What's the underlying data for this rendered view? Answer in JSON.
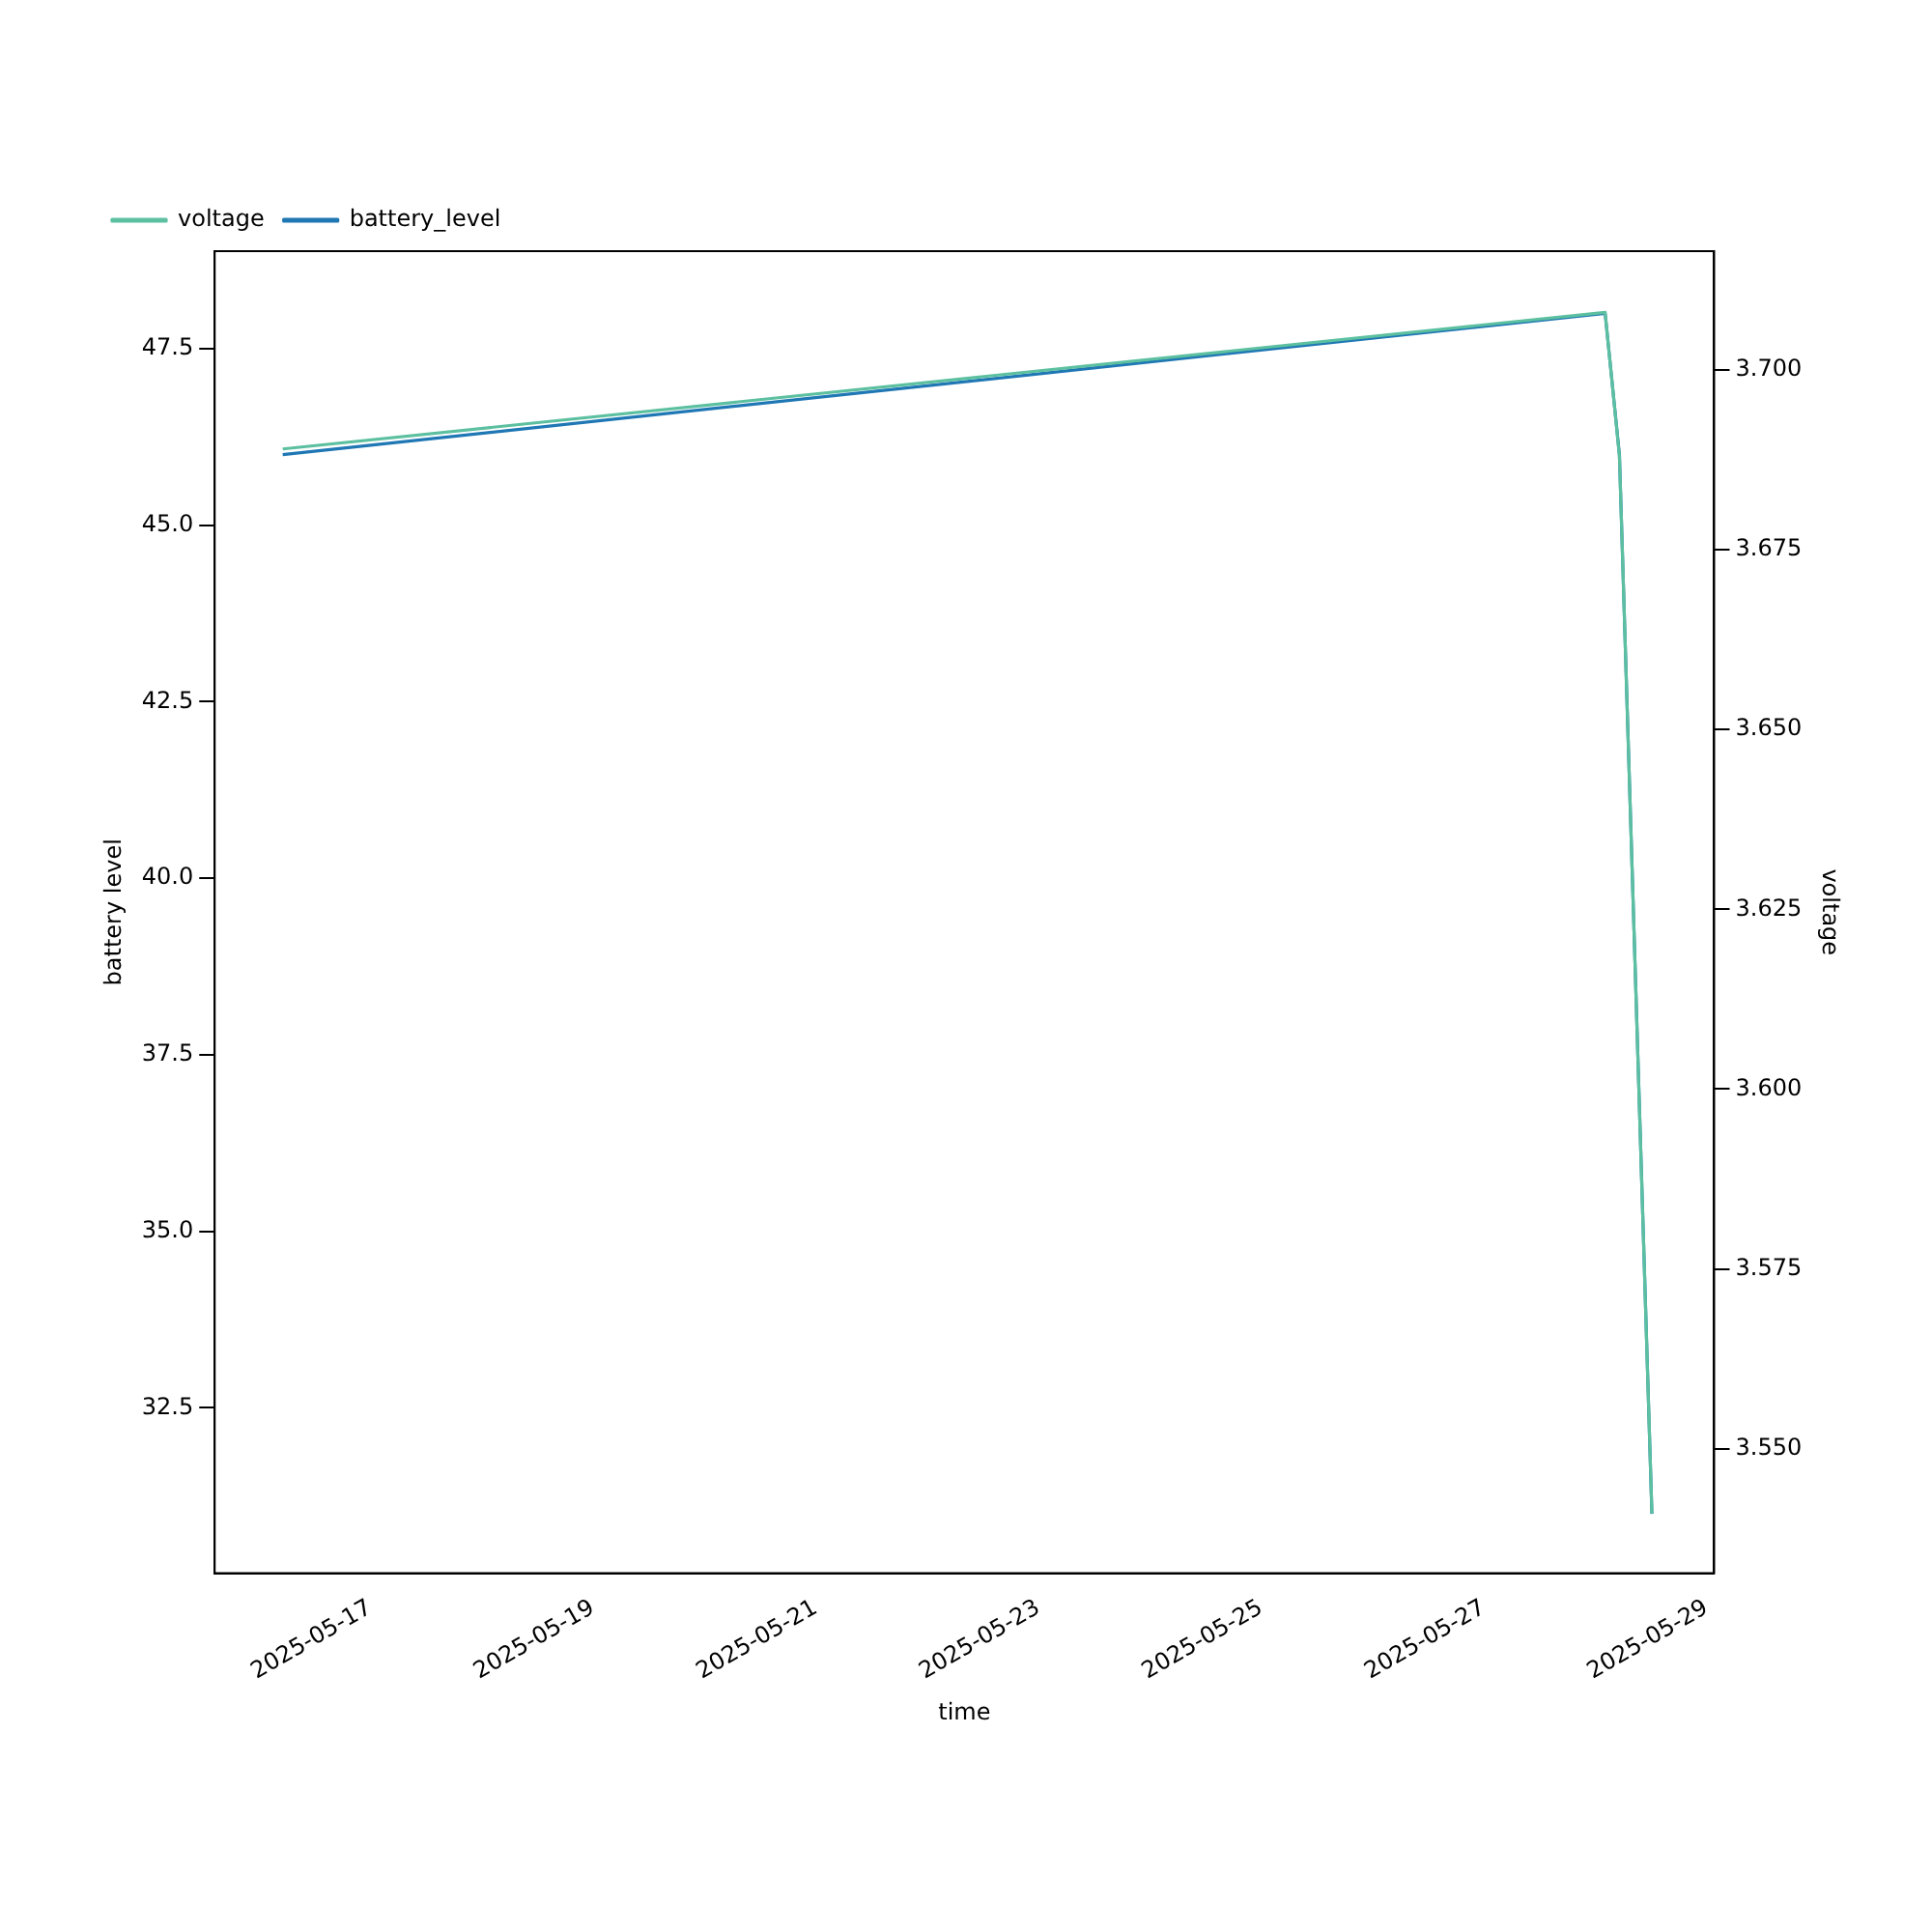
{
  "chart_data": {
    "type": "line",
    "xlabel": "time",
    "ylabel": "battery level",
    "y2label": "voltage",
    "x": [
      "2025-05-16T05:10",
      "2025-05-28T02:10",
      "2025-05-28T05:15",
      "2025-05-28T12:15"
    ],
    "series": [
      {
        "name": "battery_level",
        "color": "#1f77b4",
        "values": [
          46.0,
          48.0,
          46.0,
          31.0
        ]
      },
      {
        "name": "voltage",
        "color": "#5cc0a0",
        "axis": "y2",
        "values": [
          3.689,
          3.708,
          3.688,
          3.541
        ]
      }
    ],
    "xlim": [
      "2025-05-15T14:30",
      "2025-05-29T01:40"
    ],
    "xticks": [
      "2025-05-17",
      "2025-05-19",
      "2025-05-21",
      "2025-05-23",
      "2025-05-25",
      "2025-05-27",
      "2025-05-29"
    ],
    "ylim": [
      30.16,
      48.88
    ],
    "yticks": [
      {
        "value": 32.5,
        "label": "32.5"
      },
      {
        "value": 35,
        "label": "35.0"
      },
      {
        "value": 37.5,
        "label": "37.5"
      },
      {
        "value": 40,
        "label": "40.0"
      },
      {
        "value": 42.5,
        "label": "42.5"
      },
      {
        "value": 45,
        "label": "45.0"
      },
      {
        "value": 47.5,
        "label": "47.5"
      }
    ],
    "y2lim": [
      3.5327,
      3.7165
    ],
    "y2ticks": [
      {
        "value": 3.55,
        "label": "3.550"
      },
      {
        "value": 3.575,
        "label": "3.575"
      },
      {
        "value": 3.6,
        "label": "3.600"
      },
      {
        "value": 3.625,
        "label": "3.625"
      },
      {
        "value": 3.65,
        "label": "3.650"
      },
      {
        "value": 3.675,
        "label": "3.675"
      },
      {
        "value": 3.7,
        "label": "3.700"
      }
    ],
    "grid": false,
    "legend": "top left",
    "marker": "none",
    "line_style": "solid"
  }
}
